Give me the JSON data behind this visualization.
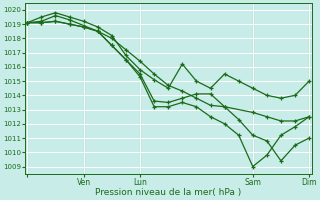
{
  "xlabel": "Pression niveau de la mer( hPa )",
  "background_color": "#c8ece8",
  "grid_color": "#ffffff",
  "line_color": "#1a6b1a",
  "ylim": [
    1008.5,
    1020.5
  ],
  "yticks": [
    1009,
    1010,
    1011,
    1012,
    1013,
    1014,
    1015,
    1016,
    1017,
    1018,
    1019,
    1020
  ],
  "xlim": [
    -1,
    121
  ],
  "xtick_positions": [
    0,
    24,
    48,
    96,
    120
  ],
  "xtick_labels": [
    "",
    "Ven",
    "Lun",
    "Sam",
    "Dim"
  ],
  "vlines": [
    0,
    24,
    48,
    96,
    120
  ],
  "line1_x": [
    0,
    6,
    12,
    18,
    24,
    30,
    36,
    42,
    48,
    54,
    60,
    66,
    72,
    78,
    84,
    90,
    96,
    102,
    108,
    114,
    120
  ],
  "line1_y": [
    1019.1,
    1019.5,
    1019.8,
    1019.5,
    1019.2,
    1018.8,
    1018.2,
    1016.8,
    1015.8,
    1015.1,
    1014.5,
    1016.2,
    1015.0,
    1014.5,
    1015.5,
    1015.0,
    1014.5,
    1014.0,
    1013.8,
    1014.0,
    1015.0
  ],
  "line2_x": [
    0,
    6,
    12,
    18,
    24,
    30,
    36,
    42,
    48,
    54,
    60,
    66,
    72,
    78,
    84,
    96,
    102,
    108,
    114,
    120
  ],
  "line2_y": [
    1019.1,
    1019.2,
    1019.6,
    1019.3,
    1018.9,
    1018.5,
    1018.0,
    1017.2,
    1016.4,
    1015.5,
    1014.7,
    1014.3,
    1013.8,
    1013.3,
    1013.2,
    1012.8,
    1012.5,
    1012.2,
    1012.2,
    1012.5
  ],
  "line3_x": [
    0,
    6,
    12,
    18,
    24,
    30,
    36,
    42,
    48,
    54,
    60,
    66,
    72,
    78,
    84,
    90,
    96,
    102,
    108,
    114,
    120
  ],
  "line3_y": [
    1019.1,
    1019.1,
    1019.2,
    1019.0,
    1018.8,
    1018.5,
    1017.5,
    1016.5,
    1015.5,
    1013.6,
    1013.5,
    1013.8,
    1014.1,
    1014.1,
    1013.2,
    1012.3,
    1011.2,
    1010.8,
    1009.4,
    1010.5,
    1011.0
  ],
  "line4_x": [
    0,
    6,
    12,
    18,
    24,
    30,
    36,
    42,
    48,
    54,
    60,
    66,
    72,
    78,
    84,
    90,
    96,
    102,
    108,
    114,
    120
  ],
  "line4_y": [
    1019.1,
    1019.1,
    1019.2,
    1019.0,
    1018.8,
    1018.5,
    1017.5,
    1016.5,
    1015.3,
    1013.2,
    1013.2,
    1013.5,
    1013.2,
    1012.5,
    1012.0,
    1011.2,
    1009.0,
    1009.8,
    1011.2,
    1011.8,
    1012.5
  ]
}
